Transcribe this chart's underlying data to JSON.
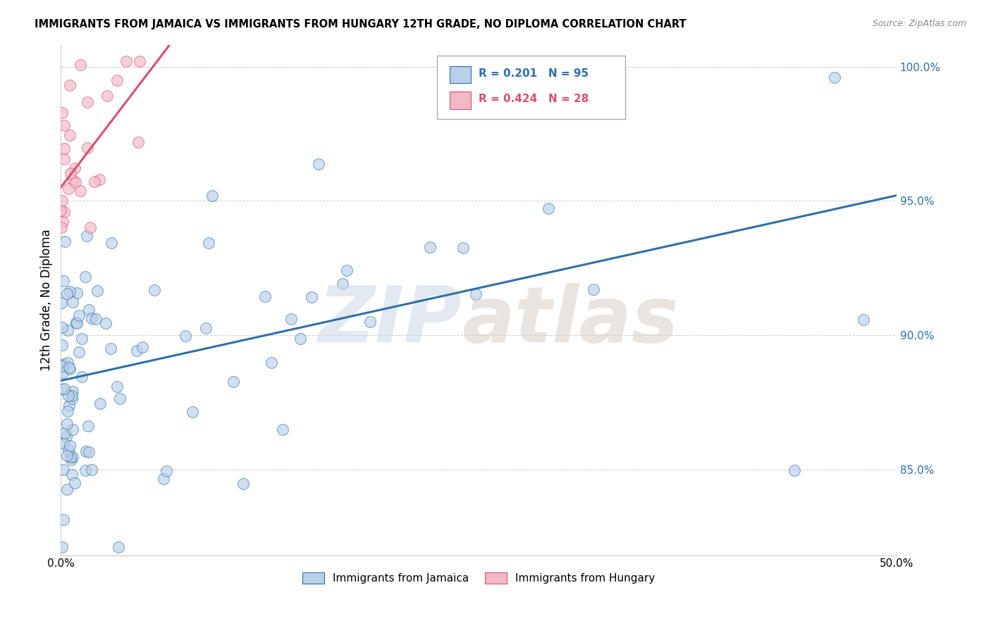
{
  "title": "IMMIGRANTS FROM JAMAICA VS IMMIGRANTS FROM HUNGARY 12TH GRADE, NO DIPLOMA CORRELATION CHART",
  "source": "Source: ZipAtlas.com",
  "ylabel": "12th Grade, No Diploma",
  "x_min": 0.0,
  "x_max": 0.5,
  "y_min": 0.818,
  "y_max": 1.008,
  "legend_blue_r": "0.201",
  "legend_blue_n": "95",
  "legend_pink_r": "0.424",
  "legend_pink_n": "28",
  "legend_blue_label": "Immigrants from Jamaica",
  "legend_pink_label": "Immigrants from Hungary",
  "yticks": [
    0.85,
    0.9,
    0.95,
    1.0
  ],
  "ytick_labels": [
    "85.0%",
    "90.0%",
    "95.0%",
    "100.0%"
  ],
  "blue_color": "#b8d0e8",
  "blue_line_color": "#2e6faa",
  "pink_color": "#f2b8c6",
  "pink_line_color": "#d94f6e",
  "blue_trend_x0": 0.0,
  "blue_trend_x1": 0.5,
  "blue_trend_y0": 0.883,
  "blue_trend_y1": 0.952,
  "pink_trend_x0": 0.0,
  "pink_trend_x1": 0.065,
  "pink_trend_y0": 0.955,
  "pink_trend_y1": 1.008
}
